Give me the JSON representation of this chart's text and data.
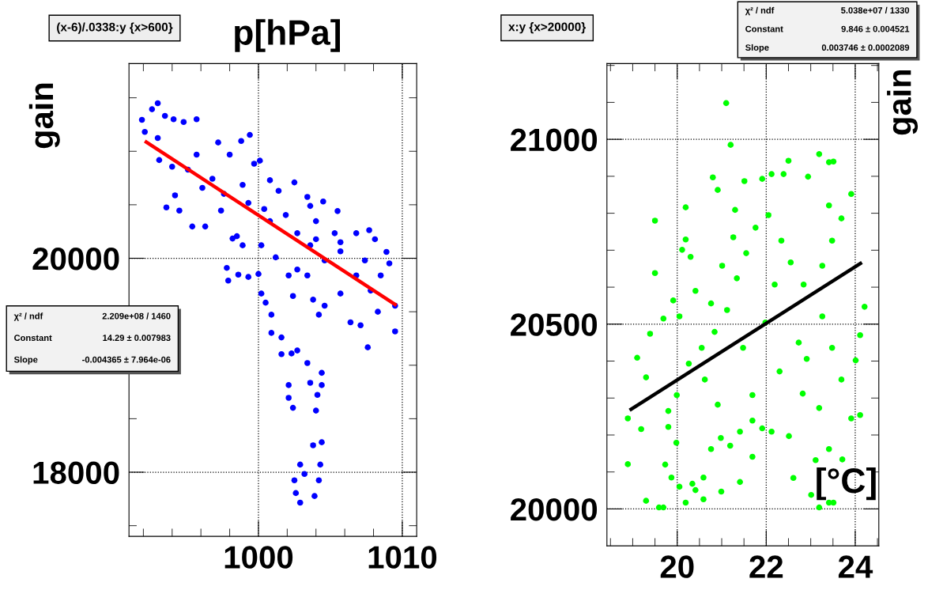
{
  "chart_data": [
    {
      "type": "scatter",
      "title": "(x-6)/.0338:y {x>600}",
      "xlabel": "p[hPa]",
      "ylabel": "gain",
      "xlim": [
        991,
        1011
      ],
      "ylim": [
        17400,
        21820
      ],
      "xticks": [
        {
          "value": 992,
          "label": null
        },
        {
          "value": 994,
          "label": null
        },
        {
          "value": 996,
          "label": null
        },
        {
          "value": 998,
          "label": null
        },
        1000,
        {
          "value": 1002,
          "label": null
        },
        {
          "value": 1004,
          "label": null
        },
        {
          "value": 1006,
          "label": null
        },
        {
          "value": 1008,
          "label": null
        },
        1010
      ],
      "yticks": [
        {
          "value": 17500,
          "label": null
        },
        18000,
        {
          "value": 18500,
          "label": null
        },
        {
          "value": 19000,
          "label": null
        },
        {
          "value": 19500,
          "label": null
        },
        20000,
        {
          "value": 20500,
          "label": null
        },
        {
          "value": 21000,
          "label": null
        },
        {
          "value": 21500,
          "label": null
        }
      ],
      "grid": true,
      "annotations": [
        "χ² / ndf",
        "2.209e+08 / 1460",
        "Constant",
        "14.29 ± 0.007983",
        "Slope",
        "-0.004365 ± 7.964e-06"
      ],
      "series": [
        {
          "color": "#0000ff",
          "marker": "circle",
          "x": [
            991.9,
            993.0,
            992.6,
            993.5,
            994.1,
            994.8,
            995.7,
            992.1,
            993.0,
            999.4,
            993.1,
            994.0,
            993.6,
            994.2,
            994.5,
            995.4,
            996.3,
            997.2,
            998.8,
            998.0,
            996.8,
            995.7,
            995.1,
            996.1,
            997.6,
            998.9,
            999.7,
            1000.1,
            1000.8,
            999.3,
            1000.4,
            1001.4,
            1002.5,
            1001.9,
            1003.4,
            1003.6,
            1004.5,
            1005.5,
            1004.0,
            1005.3,
            1006.8,
            1007.7,
            1008.1,
            1008.9,
            1009.1,
            1009.5,
            1009.5,
            1007.6,
            1004.2,
            1002.4,
            1002.7,
            1003.6,
            1004.6,
            1005.7,
            1006.8,
            1007.8,
            1008.3,
            1006.4,
            1007.1,
            1005.7,
            1003.8,
            1004.6,
            997.8,
            997.9,
            998.6,
            999.3,
            1000.0,
            1000.5,
            1000.9,
            1000.9,
            1001.6,
            1001.6,
            1002.3,
            1002.7,
            1003.4,
            1004.4,
            1002.1,
            1002.1,
            1002.4,
            1003.6,
            1004.1,
            1004.0,
            1004.4,
            1003.8,
            1004.4,
            1002.9,
            1004.3,
            1002.5,
            1003.2,
            1004.2,
            1002.6,
            1002.9,
            1003.9,
            997.4,
            998.5,
            998.2,
            998.9,
            1000.2,
            1001.2,
            1002.1,
            1003.4,
            1000.2,
            1004.0,
            1005.7,
            1007.4,
            1008.5,
            1002.7,
            1000.8
          ],
          "values": [
            21294,
            21449,
            21393,
            21331,
            21300,
            21274,
            21300,
            21181,
            21124,
            21153,
            20918,
            20856,
            20475,
            20588,
            20446,
            20297,
            20297,
            21082,
            21096,
            20969,
            20743,
            20969,
            20828,
            20658,
            20602,
            20686,
            20884,
            20912,
            20729,
            20517,
            20460,
            20630,
            20709,
            20404,
            20573,
            20489,
            20531,
            20441,
            20347,
            20234,
            20234,
            20263,
            20178,
            20059,
            19952,
            19556,
            19316,
            19167,
            19472,
            19647,
            19895,
            20121,
            19980,
            20065,
            19839,
            19698,
            19500,
            19401,
            19373,
            19670,
            19613,
            19556,
            19910,
            19791,
            19847,
            19825,
            19853,
            19585,
            19472,
            19302,
            19260,
            19104,
            19110,
            19138,
            19020,
            18929,
            18814,
            18695,
            18602,
            18836,
            18723,
            18576,
            18814,
            18251,
            18280,
            18071,
            18071,
            17924,
            17983,
            17924,
            17805,
            17715,
            17777,
            20446,
            20206,
            20184,
            20121,
            20121,
            20008,
            19839,
            19839,
            19670,
            20178,
            20150,
            19980,
            19839,
            20234,
            20347
          ]
        },
        {
          "type": "line",
          "color": "#ff0000",
          "x": [
            992.1,
            1009.6
          ],
          "values": [
            21095,
            19559
          ]
        }
      ]
    },
    {
      "type": "scatter",
      "title": "x:y {x>20000}",
      "xlabel": "[°C]",
      "ylabel": "gain",
      "xlim": [
        18.42,
        24.53
      ],
      "ylim": [
        19900,
        21205
      ],
      "xticks": [
        {
          "value": 18.5,
          "label": null
        },
        {
          "value": 19,
          "label": null
        },
        {
          "value": 19.5,
          "label": null
        },
        20,
        {
          "value": 20.5,
          "label": null
        },
        {
          "value": 21,
          "label": null
        },
        {
          "value": 21.5,
          "label": null
        },
        22,
        {
          "value": 22.5,
          "label": null
        },
        {
          "value": 23,
          "label": null
        },
        {
          "value": 23.5,
          "label": null
        },
        24,
        {
          "value": 24.5,
          "label": null
        }
      ],
      "yticks": [
        20000,
        {
          "value": 20100,
          "label": null
        },
        {
          "value": 20200,
          "label": null
        },
        {
          "value": 20300,
          "label": null
        },
        {
          "value": 20400,
          "label": null
        },
        20500,
        {
          "value": 20600,
          "label": null
        },
        {
          "value": 20700,
          "label": null
        },
        {
          "value": 20800,
          "label": null
        },
        {
          "value": 20900,
          "label": null
        },
        21000,
        {
          "value": 21100,
          "label": null
        },
        {
          "value": 21200,
          "label": null
        }
      ],
      "grid": true,
      "annotations": [
        "χ² / ndf",
        "5.038e+07 / 1330",
        "Constant",
        "9.846 ± 0.004521",
        "Slope",
        "0.003746 ± 0.0002089"
      ],
      "series": [
        {
          "color": "#00ff00",
          "marker": "circle",
          "x": [
            18.89,
            18.89,
            19.1,
            19.19,
            19.3,
            19.3,
            19.39,
            19.5,
            19.5,
            19.59,
            19.69,
            19.69,
            19.8,
            19.91,
            19.98,
            20.19,
            20.19,
            20.11,
            20.41,
            20.3,
            20.19,
            20.59,
            20.8,
            20.91,
            20.99,
            21.1,
            21.2,
            21.3,
            21.41,
            21.51,
            21.69,
            21.91,
            22.12,
            22.39,
            22.5,
            22.61,
            22.94,
            23.19,
            23.41,
            23.51,
            23.19,
            23.51,
            23.41,
            23.91,
            23.91,
            24.11,
            24.21,
            24.11,
            24.01,
            23.71,
            23.41,
            23.01,
            23.11,
            22.82,
            22.91,
            22.73,
            22.3,
            22.51,
            22.12,
            21.91,
            21.69,
            21.41,
            21.19,
            20.98,
            20.76,
            20.59,
            20.34,
            20.05,
            19.87,
            19.73,
            19.8,
            19.99,
            20.26,
            20.55,
            20.84,
            21.12,
            21.34,
            21.55,
            21.76,
            22.05,
            22.34,
            22.55,
            22.84,
            23.26,
            23.48,
            23.69,
            23.41,
            23.26,
            23.48,
            23.69,
            23.19,
            20.05,
            20.41,
            20.62,
            20.91,
            21.48,
            21.98,
            22.19,
            21.69,
            21.01,
            21.26,
            20.76
          ],
          "values": [
            20245,
            20121,
            20409,
            20216,
            20356,
            20022,
            20474,
            20780,
            20638,
            20004,
            20004,
            20515,
            20265,
            20564,
            20179,
            20729,
            20017,
            20701,
            20051,
            20682,
            20816,
            20026,
            20897,
            20863,
            20047,
            21098,
            20985,
            20809,
            20073,
            20887,
            20141,
            20893,
            20906,
            20906,
            20942,
            20084,
            20899,
            20960,
            20938,
            20940,
            20004,
            20017,
            20017,
            20852,
            20245,
            20470,
            20547,
            20254,
            20402,
            20134,
            20162,
            20038,
            20132,
            20312,
            20406,
            20450,
            20372,
            20197,
            20209,
            20218,
            20239,
            20209,
            20171,
            20192,
            20162,
            20085,
            20068,
            20060,
            20085,
            20120,
            20222,
            20308,
            20393,
            20436,
            20479,
            20538,
            20624,
            20692,
            20761,
            20795,
            20726,
            20667,
            20607,
            20658,
            20726,
            20786,
            20821,
            20521,
            20436,
            20350,
            20273,
            20521,
            20590,
            20350,
            20282,
            20436,
            20504,
            20607,
            20308,
            20658,
            20735,
            20556
          ]
        },
        {
          "type": "line",
          "color": "#000000",
          "x": [
            18.93,
            24.15
          ],
          "values": [
            20267,
            20667
          ]
        }
      ]
    }
  ]
}
